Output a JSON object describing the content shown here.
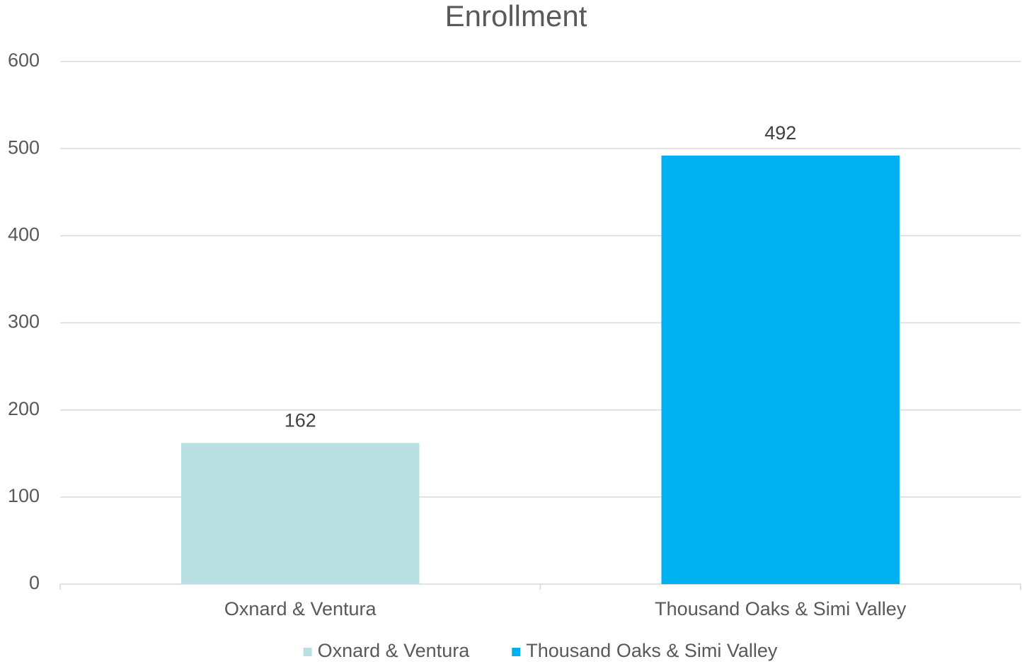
{
  "chart_data": {
    "type": "bar",
    "title": "Enrollment",
    "categories": [
      "Oxnard & Ventura",
      "Thousand Oaks & Simi Valley"
    ],
    "values": [
      162,
      492
    ],
    "colors": [
      "#b9e1e4",
      "#00b0f0"
    ],
    "ylim": [
      0,
      600
    ],
    "yticks": [
      0,
      100,
      200,
      300,
      400,
      500,
      600
    ],
    "grid": true,
    "legend": "bottom"
  }
}
